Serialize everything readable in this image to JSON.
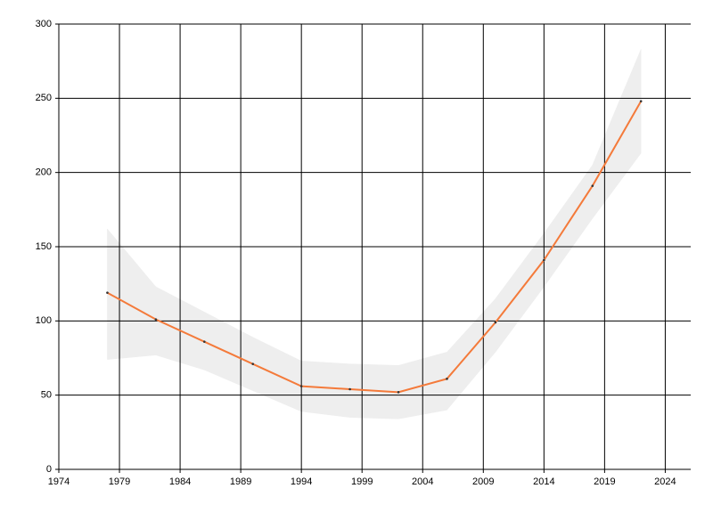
{
  "chart_data": {
    "type": "line",
    "x": [
      1978,
      1982,
      1986,
      1990,
      1994,
      1998,
      2002,
      2006,
      2010,
      2014,
      2018,
      2022
    ],
    "series": [
      {
        "color": "#f47a3a",
        "values": [
          119,
          101,
          86,
          71,
          56,
          54,
          52,
          61,
          99,
          141,
          191,
          248
        ]
      }
    ],
    "band": {
      "color": "#eeeeee",
      "upper": [
        162,
        123,
        106,
        89,
        73,
        71,
        70,
        79,
        115,
        159,
        205,
        283
      ],
      "lower": [
        74,
        77,
        67,
        53,
        39,
        35,
        34,
        40,
        79,
        123,
        169,
        213
      ]
    },
    "xlim": [
      1974,
      2026.1
    ],
    "xticks": [
      1974,
      1979,
      1984,
      1989,
      1994,
      1999,
      2004,
      2009,
      2014,
      2019,
      2024
    ],
    "ylim": [
      0,
      300
    ],
    "yticks": [
      0,
      50,
      100,
      150,
      200,
      250,
      300
    ],
    "grid": true
  }
}
